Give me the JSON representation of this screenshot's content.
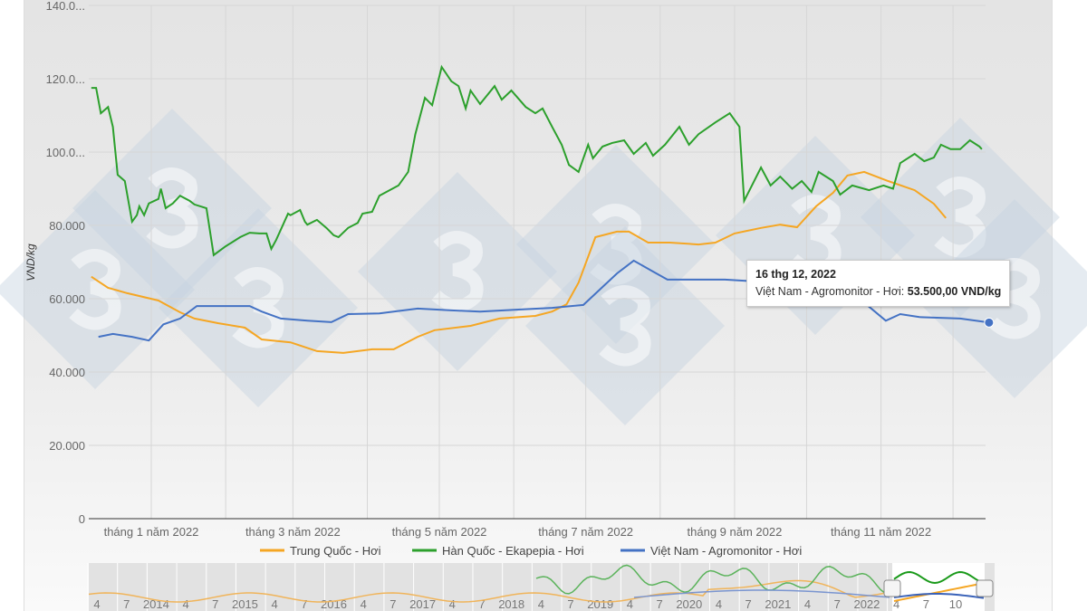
{
  "chart_data": {
    "type": "line",
    "ylabel": "VND/kg",
    "ylim": [
      0,
      140000
    ],
    "y_tick_labels": [
      "0",
      "20.000",
      "40.000",
      "60.000",
      "80.000",
      "100.0...",
      "120.0...",
      "140.0..."
    ],
    "y_tick_values": [
      0,
      20000,
      40000,
      60000,
      80000,
      100000,
      120000,
      140000
    ],
    "x_unit": "days since 2022-01-01",
    "xlim": [
      -25,
      349
    ],
    "x_tick_labels": [
      "tháng 1 năm 2022",
      "tháng 3 năm 2022",
      "tháng 5 năm 2022",
      "tháng 7 năm 2022",
      "tháng 9 năm 2022",
      "tháng 11 năm 2022"
    ],
    "x_tick_values": [
      0,
      59,
      120,
      181,
      243,
      304
    ],
    "grid": true,
    "legend_position": "bottom",
    "series": [
      {
        "name": "Trung Quốc - Hơi",
        "color": "#f5a623",
        "x": [
          -25,
          -18,
          -10,
          3,
          12,
          18,
          28,
          39,
          46,
          58,
          69,
          80,
          92,
          101,
          111,
          118,
          133,
          145,
          160,
          167,
          173,
          178,
          185,
          194,
          199,
          207,
          216,
          228,
          235,
          243,
          254,
          262,
          269,
          277,
          284,
          290,
          297,
          307,
          318,
          326,
          331
        ],
        "y": [
          66,
          63,
          61.5,
          59.5,
          56.3,
          54.6,
          53.3,
          52.1,
          48.9,
          48.1,
          45.7,
          45.2,
          46.2,
          46.2,
          49.6,
          51.4,
          52.6,
          54.6,
          55.3,
          56.5,
          58.5,
          64.4,
          76.8,
          78.3,
          78.3,
          75.3,
          75.3,
          74.8,
          75.3,
          77.8,
          79.3,
          80.2,
          79.5,
          85.2,
          88.9,
          93.6,
          94.6,
          92.1,
          89.6,
          85.9,
          82
        ]
      },
      {
        "name": "Hàn Quốc - Ekapepia - Hơi",
        "color": "#2ca02c",
        "x": [
          -25,
          -23,
          -21,
          -18,
          -16,
          -14,
          -11,
          -8,
          -6,
          -5,
          -3,
          -1,
          3,
          4,
          6,
          9,
          12,
          16,
          18,
          23,
          26,
          31,
          37,
          41,
          45,
          48,
          50,
          52,
          57,
          58,
          62,
          64,
          65,
          69,
          73,
          76,
          78,
          82,
          86,
          88,
          92,
          95,
          103,
          107,
          110,
          114,
          117,
          121,
          125,
          128,
          131,
          133,
          137,
          143,
          146,
          150,
          156,
          160,
          163,
          167,
          171,
          174,
          178,
          182,
          184,
          188,
          192,
          197,
          201,
          206,
          209,
          214,
          220,
          224,
          228,
          235,
          241,
          245,
          247,
          254,
          258,
          262,
          267,
          271,
          275,
          278,
          284,
          287,
          292,
          299,
          305,
          309,
          312,
          318,
          322,
          326,
          329,
          333,
          337,
          341,
          345,
          346
        ],
        "y": [
          117.5,
          117.5,
          110.6,
          112.3,
          106.9,
          93.8,
          92.1,
          81,
          82.8,
          85.2,
          82.8,
          86,
          87.2,
          90,
          84.7,
          86,
          88.1,
          86.7,
          85.7,
          84.7,
          71.9,
          74.3,
          76.8,
          78,
          77.8,
          77.8,
          73.6,
          76,
          83.2,
          82.8,
          84.2,
          81,
          80.2,
          81.5,
          79.3,
          77.3,
          76.8,
          79.3,
          80.7,
          83.2,
          83.7,
          88.1,
          90.9,
          94.6,
          104.9,
          114.8,
          112.8,
          123.2,
          119.3,
          118,
          111.9,
          116.8,
          113.1,
          118,
          114.3,
          116.8,
          112.3,
          110.6,
          111.9,
          106.9,
          102,
          96.5,
          94.6,
          102,
          98.3,
          101.5,
          102.5,
          103.2,
          99.5,
          102.5,
          99,
          102,
          106.9,
          102,
          104.9,
          108.1,
          110.6,
          106.9,
          86.7,
          95.8,
          90.9,
          93.3,
          90,
          92.1,
          89.1,
          94.6,
          92.1,
          88.4,
          90.9,
          89.6,
          90.9,
          90,
          97,
          99.5,
          97.5,
          98.5,
          102,
          100.8,
          100.8,
          103.2,
          101.5,
          100.8
        ]
      },
      {
        "name": "Việt Nam - Agromonitor - Hơi",
        "color": "#4472c4",
        "x": [
          -22,
          -16,
          -8,
          -1,
          5,
          12,
          19,
          41,
          46,
          54,
          65,
          75,
          82,
          95,
          111,
          126,
          137,
          152,
          167,
          180,
          194,
          201,
          209,
          215,
          239,
          250,
          295,
          306,
          312,
          320,
          337,
          349
        ],
        "y": [
          49.6,
          50.4,
          49.6,
          48.6,
          53,
          54.6,
          58,
          58,
          56.5,
          54.6,
          54,
          53.6,
          55.8,
          56,
          57.3,
          56.8,
          56.5,
          57,
          57.5,
          58.3,
          66.9,
          70.4,
          67.4,
          65.2,
          65.2,
          64.8,
          60,
          54,
          55.8,
          55,
          54.6,
          53.5
        ]
      }
    ],
    "y_scale_note": "y values in thousands VND/kg",
    "tooltip": {
      "date": "16 thg 12, 2022",
      "series": "Việt Nam - Agromonitor - Hơi:",
      "value": "53.500,00 VND/kg"
    },
    "navigator": {
      "tick_labels": [
        "4",
        "7",
        "2014",
        "4",
        "7",
        "2015",
        "4",
        "7",
        "2016",
        "4",
        "7",
        "2017",
        "4",
        "7",
        "2018",
        "4",
        "7",
        "2019",
        "4",
        "7",
        "2020",
        "4",
        "7",
        "2021",
        "4",
        "7",
        "2022",
        "4",
        "7",
        "10"
      ]
    }
  }
}
